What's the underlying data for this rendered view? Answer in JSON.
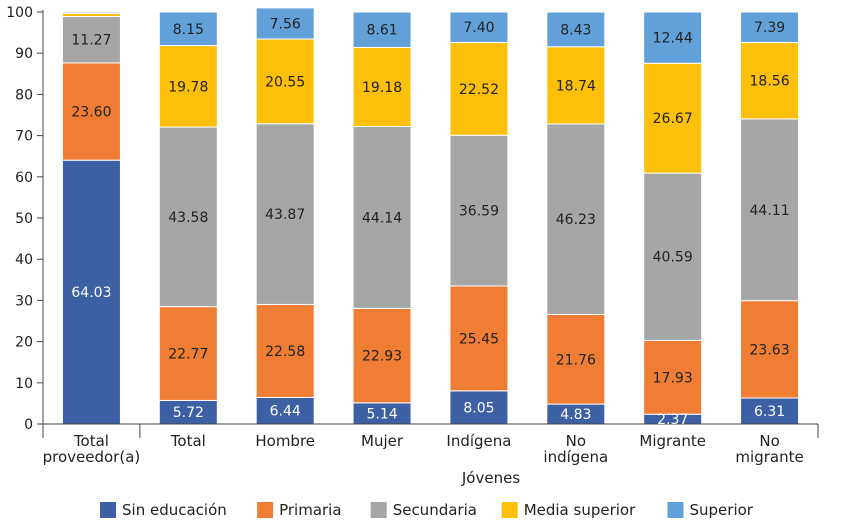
{
  "chart_data": {
    "type": "bar",
    "stacked": true,
    "title": "",
    "xlabel": "Jóvenes",
    "ylabel": "",
    "ylim": [
      0,
      100
    ],
    "yticks": [
      0,
      10,
      20,
      30,
      40,
      50,
      60,
      70,
      80,
      90,
      100
    ],
    "grid": false,
    "legend_position": "bottom",
    "categories": [
      [
        "Total",
        "proveedor(a)"
      ],
      [
        "Total"
      ],
      [
        "Hombre"
      ],
      [
        "Mujer"
      ],
      [
        "Indígena"
      ],
      [
        "No",
        "indígena"
      ],
      [
        "Migrante"
      ],
      [
        "No",
        "migrante"
      ]
    ],
    "group_label": "Jóvenes",
    "series": [
      {
        "name": "Sin educación",
        "color": "#3d5fa3",
        "label_color": "#ffffff",
        "values": [
          64.03,
          5.72,
          6.44,
          5.14,
          8.05,
          4.83,
          2.37,
          6.31
        ]
      },
      {
        "name": "Primaria",
        "color": "#ef7d33",
        "label_color": "#222222",
        "values": [
          23.6,
          22.77,
          22.58,
          22.93,
          25.45,
          21.76,
          17.93,
          23.63
        ]
      },
      {
        "name": "Secundaria",
        "color": "#a6a6a6",
        "label_color": "#222222",
        "values": [
          11.27,
          43.58,
          43.87,
          44.14,
          36.59,
          46.23,
          40.59,
          44.11
        ]
      },
      {
        "name": "Media superior",
        "color": "#fcc00a",
        "label_color": "#222222",
        "values": [
          0.8,
          19.78,
          20.55,
          19.18,
          22.52,
          18.74,
          26.67,
          18.56
        ]
      },
      {
        "name": "Superior",
        "color": "#62a0d9",
        "label_color": "#222222",
        "values": [
          0.3,
          8.15,
          7.56,
          8.61,
          7.4,
          8.43,
          12.44,
          7.39
        ]
      }
    ],
    "data_labels": [
      [
        "64.03",
        "5.72",
        "6.44",
        "5.14",
        "8.05",
        "4.83",
        "2.37",
        "6.31"
      ],
      [
        "23.60",
        "22.77",
        "22.58",
        "22.93",
        "25.45",
        "21.76",
        "17.93",
        "23.63"
      ],
      [
        "11.27",
        "43.58",
        "43.87",
        "44.14",
        "36.59",
        "46.23",
        "40.59",
        "44.11"
      ],
      [
        "",
        "19.78",
        "20.55",
        "19.18",
        "22.52",
        "18.74",
        "26.67",
        "18.56"
      ],
      [
        "",
        "8.15",
        "7.56",
        "8.61",
        "7.40",
        "8.43",
        "12.44",
        "7.39"
      ]
    ]
  }
}
